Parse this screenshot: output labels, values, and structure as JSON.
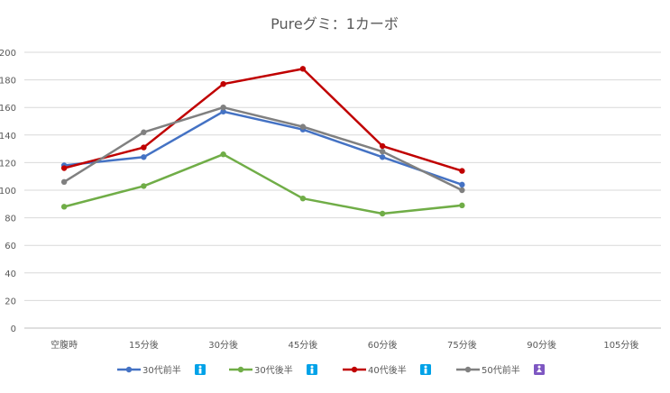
{
  "chart_data": {
    "type": "line",
    "title": "Pureグミ：1カーボ",
    "xlabel": "",
    "ylabel": "",
    "categories": [
      "空腹時",
      "15分後",
      "30分後",
      "45分後",
      "60分後",
      "75分後",
      "90分後",
      "105分後"
    ],
    "ylim": [
      0,
      200
    ],
    "yticks": [
      0,
      20,
      40,
      60,
      80,
      100,
      120,
      140,
      160,
      180,
      200
    ],
    "grid": true,
    "legend_position": "bottom",
    "series": [
      {
        "name": "30代前半",
        "color": "#4472C4",
        "icon": "male-icon",
        "icon_color": "#00A2E8",
        "values": [
          118,
          124,
          157,
          144,
          124,
          104,
          null,
          null
        ]
      },
      {
        "name": "30代後半",
        "color": "#70AD47",
        "icon": "male-icon",
        "icon_color": "#00A2E8",
        "values": [
          88,
          103,
          126,
          94,
          83,
          89,
          null,
          null
        ]
      },
      {
        "name": "40代後半",
        "color": "#C00000",
        "icon": "male-icon",
        "icon_color": "#00A2E8",
        "values": [
          116,
          131,
          177,
          188,
          132,
          114,
          null,
          null
        ]
      },
      {
        "name": "50代前半",
        "color": "#808080",
        "icon": "female-icon",
        "icon_color": "#7E57C2",
        "values": [
          106,
          142,
          160,
          146,
          128,
          100,
          null,
          null
        ]
      }
    ]
  }
}
